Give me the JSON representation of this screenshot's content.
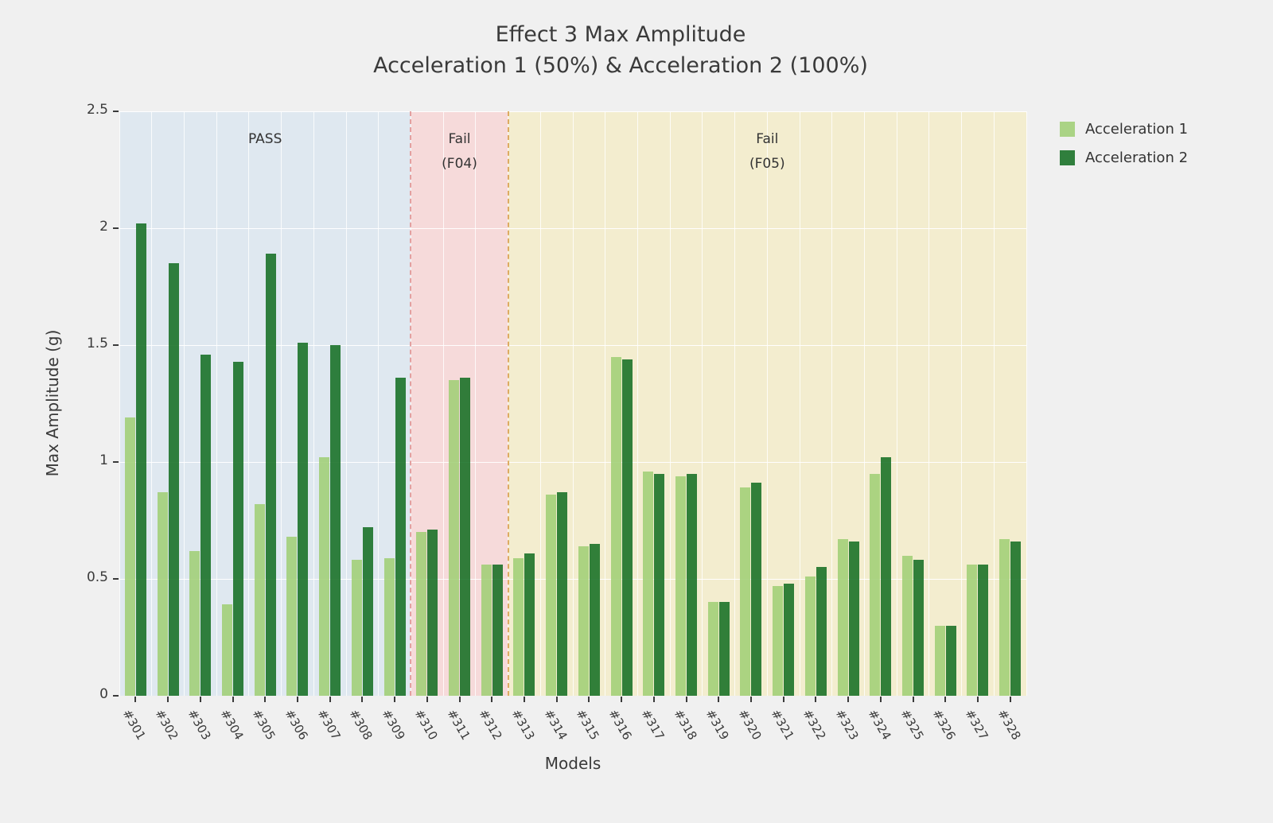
{
  "chart_data": {
    "type": "bar",
    "title": "Effect 3 Max Amplitude",
    "subtitle": "Acceleration 1 (50%) & Acceleration 2 (100%)",
    "xlabel": "Models",
    "ylabel": "Max Amplitude (g)",
    "ylim": [
      0,
      2.5
    ],
    "yticks": [
      0,
      0.5,
      1,
      1.5,
      2,
      2.5
    ],
    "ytick_labels": [
      "0",
      "0.5",
      "1",
      "1.5",
      "2",
      "2.5"
    ],
    "grid": true,
    "legend_position": "outside-upper-right",
    "categories": [
      "#301",
      "#302",
      "#303",
      "#304",
      "#305",
      "#306",
      "#307",
      "#308",
      "#309",
      "#310",
      "#311",
      "#312",
      "#313",
      "#314",
      "#315",
      "#316",
      "#317",
      "#318",
      "#319",
      "#320",
      "#321",
      "#322",
      "#323",
      "#324",
      "#325",
      "#326",
      "#327",
      "#328"
    ],
    "series": [
      {
        "name": "Acceleration 1",
        "color": "#a0cf75",
        "values": [
          1.19,
          0.87,
          0.62,
          0.39,
          0.82,
          0.68,
          1.02,
          0.58,
          0.59,
          0.7,
          1.35,
          0.56,
          0.59,
          0.86,
          0.64,
          1.45,
          0.96,
          0.94,
          0.4,
          0.89,
          0.47,
          0.51,
          0.67,
          0.95,
          0.6,
          0.3,
          0.56,
          0.67
        ]
      },
      {
        "name": "Acceleration 2",
        "color": "#146e23",
        "values": [
          2.02,
          1.85,
          1.46,
          1.43,
          1.89,
          1.51,
          1.5,
          0.72,
          1.36,
          0.71,
          1.36,
          0.56,
          0.61,
          0.87,
          0.65,
          1.44,
          0.95,
          0.95,
          0.4,
          0.91,
          0.48,
          0.55,
          0.66,
          1.02,
          0.58,
          0.3,
          0.56,
          0.66
        ]
      }
    ],
    "regions": [
      {
        "label_lines": [
          "PASS"
        ],
        "start_index": 0,
        "end_index": 9,
        "color": "#dfe8f0"
      },
      {
        "label_lines": [
          "Fail",
          "(F04)"
        ],
        "start_index": 9,
        "end_index": 12,
        "color": "#f6dada"
      },
      {
        "label_lines": [
          "Fail",
          "(F05)"
        ],
        "start_index": 12,
        "end_index": 28,
        "color": "#f3edcf"
      }
    ],
    "separators": [
      {
        "index": 9,
        "color": "#e3a0a0"
      },
      {
        "index": 12,
        "color": "#ddab62"
      }
    ]
  }
}
